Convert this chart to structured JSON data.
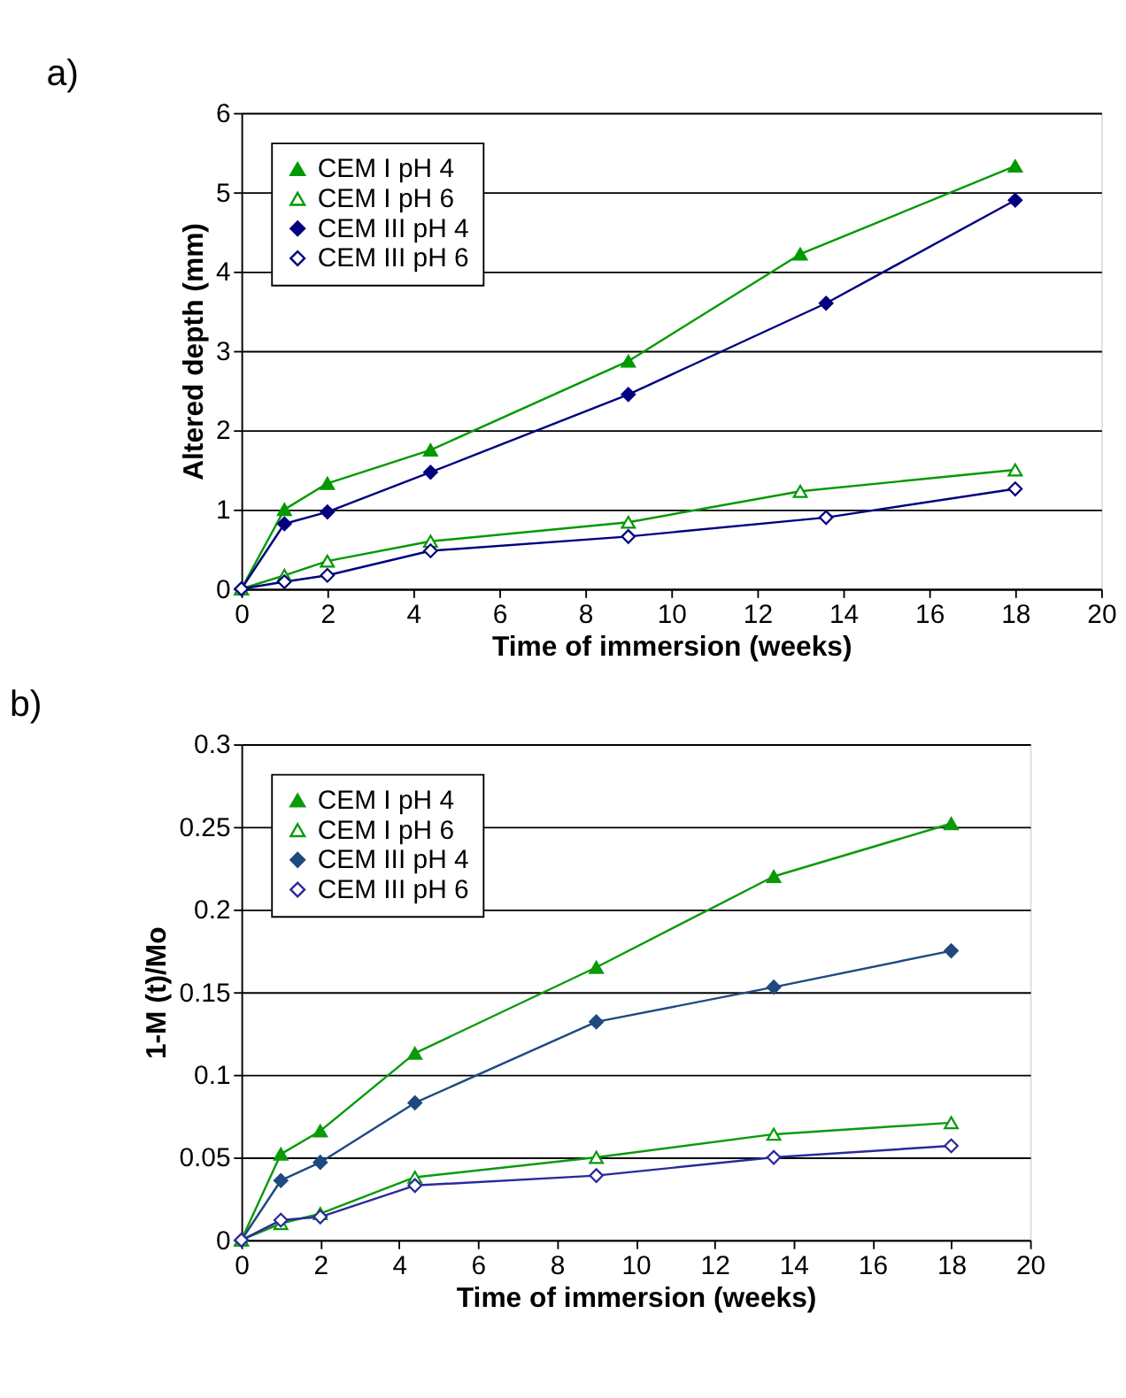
{
  "chart_data": [
    {
      "type": "line",
      "title": "a)",
      "xlabel": "Time of immersion (weeks)",
      "ylabel": "Altered depth (mm)",
      "xlim": [
        0,
        20
      ],
      "xticks": [
        0,
        2,
        4,
        6,
        8,
        10,
        12,
        14,
        16,
        18,
        20
      ],
      "ylim": [
        0,
        6
      ],
      "yticks": [
        0,
        1,
        2,
        3,
        4,
        5,
        6
      ],
      "grid": "y",
      "legend": "top left",
      "line_style": "solid",
      "series": [
        {
          "name": "CEM I pH 4",
          "color": "#009900",
          "marker": "triangle",
          "x": [
            0,
            1,
            2,
            4.4,
            9,
            13,
            18
          ],
          "values": [
            0,
            1.0,
            1.33,
            1.75,
            2.87,
            4.22,
            5.33
          ]
        },
        {
          "name": "CEM I pH 6",
          "color": "#009900",
          "marker": "triangle",
          "colors": [
            "#ffffff",
            "#ffffff",
            "#ffffff",
            "#ffffff",
            "#ffffff",
            "#ffffff",
            "#ffffff"
          ],
          "x": [
            0,
            1,
            2,
            4.4,
            9,
            13,
            18
          ],
          "values": [
            0,
            0.17,
            0.35,
            0.6,
            0.84,
            1.23,
            1.5
          ]
        },
        {
          "name": "CEM III pH 4",
          "color": "#000080",
          "marker": "diamond",
          "x": [
            0,
            1,
            2,
            4.4,
            9,
            13.6,
            18
          ],
          "values": [
            0,
            0.82,
            0.97,
            1.47,
            2.45,
            3.6,
            4.9
          ]
        },
        {
          "name": "CEM III pH 6",
          "color": "#000080",
          "marker": "diamond",
          "colors": [
            "#ffffff",
            "#ffffff",
            "#ffffff",
            "#ffffff",
            "#ffffff",
            "#ffffff",
            "#ffffff"
          ],
          "x": [
            0,
            1,
            2,
            4.4,
            9,
            13.6,
            18
          ],
          "values": [
            0,
            0.09,
            0.17,
            0.48,
            0.66,
            0.9,
            1.26
          ]
        }
      ]
    },
    {
      "type": "line",
      "title": "b)",
      "xlabel": "Time of immersion (weeks)",
      "ylabel": "1-M (t)/Mo",
      "xlim": [
        0,
        20
      ],
      "xticks": [
        0,
        2,
        4,
        6,
        8,
        10,
        12,
        14,
        16,
        18,
        20
      ],
      "ylim": [
        0,
        0.3
      ],
      "yticks": [
        0,
        0.05,
        0.1,
        0.15,
        0.2,
        0.25,
        0.3
      ],
      "grid": "y",
      "legend": "top left",
      "line_style": "solid",
      "series": [
        {
          "name": "CEM I pH 4",
          "color": "#0a9a0a",
          "marker": "triangle",
          "x": [
            0,
            1,
            2,
            4.4,
            9,
            13.5,
            18
          ],
          "values": [
            0,
            0.052,
            0.066,
            0.113,
            0.165,
            0.22,
            0.252
          ]
        },
        {
          "name": "CEM I pH 6",
          "color": "#0a9a0a",
          "marker": "triangle",
          "colors": [
            "#ffffff",
            "#ffffff",
            "#ffffff",
            "#ffffff",
            "#ffffff",
            "#ffffff",
            "#ffffff"
          ],
          "x": [
            0,
            1,
            2,
            4.4,
            9,
            13.5,
            18
          ],
          "values": [
            0,
            0.01,
            0.016,
            0.038,
            0.05,
            0.064,
            0.071
          ]
        },
        {
          "name": "CEM III pH 4",
          "color": "#1f4a80",
          "marker": "diamond",
          "x": [
            0,
            1,
            2,
            4.4,
            9,
            13.5,
            18
          ],
          "values": [
            0,
            0.036,
            0.047,
            0.083,
            0.132,
            0.153,
            0.175
          ]
        },
        {
          "name": "CEM III pH 6",
          "color": "#2a2a9a",
          "marker": "diamond",
          "colors": [
            "#ffffff",
            "#ffffff",
            "#ffffff",
            "#ffffff",
            "#ffffff",
            "#ffffff",
            "#ffffff"
          ],
          "x": [
            0,
            1,
            2,
            4.4,
            9,
            13.5,
            18
          ],
          "values": [
            0,
            0.012,
            0.014,
            0.033,
            0.039,
            0.05,
            0.057
          ]
        }
      ]
    }
  ]
}
